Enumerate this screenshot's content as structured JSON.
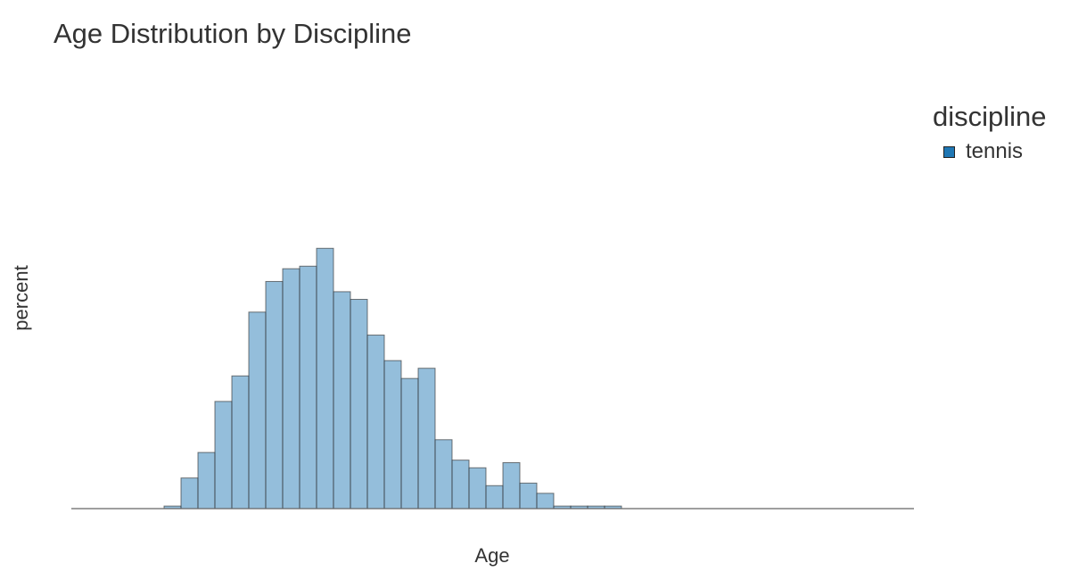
{
  "chart_data": {
    "type": "bar",
    "title": "Age Distribution by Discipline",
    "xlabel": "Age",
    "ylabel": "percent",
    "legend_title": "discipline",
    "legend_placement": "right",
    "grid": false,
    "series": [
      {
        "name": "tennis",
        "color": "#1f77b4",
        "fill_opacity": 0.48,
        "values": [
          0.1,
          1.2,
          2.2,
          4.2,
          5.2,
          7.7,
          8.9,
          9.4,
          9.5,
          10.2,
          8.5,
          8.2,
          6.8,
          5.8,
          5.1,
          5.5,
          2.7,
          1.9,
          1.6,
          0.9,
          1.8,
          1.0,
          0.6,
          0.1,
          0.1,
          0.1,
          0.1
        ]
      }
    ]
  }
}
